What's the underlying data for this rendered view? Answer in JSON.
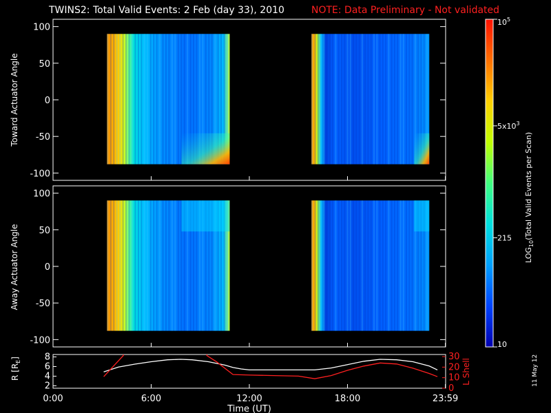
{
  "title": {
    "main": "TWINS2: Total Valid Events:  2 Feb (day  33), 2010",
    "note": "NOTE: Data Preliminary - Not validated",
    "note_color": "#ff2020"
  },
  "date_stamp": "11 May 12",
  "colors": {
    "background": "#000000",
    "axes": "#ffffff",
    "r_line": "#ffffff",
    "lshell_line": "#ff2020"
  },
  "chart_data": [
    {
      "type": "heatmap",
      "name": "toward",
      "ylabel": "Toward Actuator Angle",
      "ylim": [
        -110,
        110
      ],
      "yticks": [
        -100,
        -50,
        0,
        50,
        100
      ],
      "y_range": [
        -88,
        90
      ],
      "intervals": [
        [
          3.3,
          10.8
        ],
        [
          15.8,
          23.0
        ]
      ]
    },
    {
      "type": "heatmap",
      "name": "away",
      "ylabel": "Away Actuator Angle",
      "ylim": [
        -110,
        110
      ],
      "yticks": [
        -100,
        -50,
        0,
        50,
        100
      ],
      "y_range": [
        -88,
        90
      ],
      "intervals": [
        [
          3.3,
          10.8
        ],
        [
          15.8,
          23.0
        ]
      ]
    },
    {
      "type": "line",
      "name": "orbit",
      "ylabel_left": "R [R",
      "ylabel_left_sub": "E",
      "ylabel_left_end": "]",
      "ylabel_right": "L Shell",
      "xlabel": "Time (UT)",
      "xlim": [
        0,
        24
      ],
      "xticks": [
        0,
        6,
        12,
        18,
        23.983
      ],
      "xtick_labels": [
        "0:00",
        "6:00",
        "12:00",
        "18:00",
        "23:59"
      ],
      "left_ticks": [
        "2",
        "4",
        "6",
        "8"
      ],
      "left_tick_values": [
        2,
        4,
        6,
        8
      ],
      "left_ylim": [
        1.5,
        8.5
      ],
      "right_ticks": [
        "0",
        "10",
        "20",
        "30"
      ],
      "right_tick_values": [
        0,
        10,
        20,
        30
      ],
      "right_ylim": [
        0,
        32
      ],
      "series": [
        {
          "axis": "left",
          "x": [
            3.1,
            4.0,
            5.0,
            6.0,
            7.0,
            7.8,
            8.5,
            9.5,
            10.5,
            11.0,
            11.5,
            12.0,
            13.0,
            14.0,
            15.0,
            16.0,
            17.0,
            18.0,
            19.0,
            20.0,
            21.0,
            22.0,
            23.0,
            23.5
          ],
          "y": [
            4.9,
            5.9,
            6.5,
            7.0,
            7.4,
            7.5,
            7.4,
            7.0,
            6.3,
            5.8,
            5.5,
            5.3,
            5.3,
            5.3,
            5.3,
            5.3,
            5.7,
            6.4,
            7.1,
            7.5,
            7.4,
            7.0,
            6.1,
            5.3
          ]
        },
        {
          "axis": "right",
          "x": [
            3.1,
            4.3,
            4.3,
            9.4,
            9.4,
            10.0,
            11.0,
            12.0,
            13.5,
            15.0,
            16.0,
            17.0,
            18.0,
            19.0,
            20.0,
            21.0,
            22.0,
            23.0,
            23.5
          ],
          "y": [
            11,
            31,
            33,
            33,
            31,
            25,
            13,
            12.5,
            12,
            11.5,
            9,
            12,
            17,
            21,
            24,
            23,
            19,
            14,
            11
          ]
        }
      ]
    }
  ],
  "colorbar": {
    "scale": "log",
    "min": 10,
    "max": 100000,
    "tick_labels": [
      {
        "value": 10,
        "text": "10"
      },
      {
        "value": 215,
        "text": "215"
      },
      {
        "value": 5000,
        "text": "5x10",
        "sup": "3"
      },
      {
        "value": 100000,
        "text": "10",
        "sup": "5"
      }
    ],
    "label": "LOG",
    "label_sub": "10",
    "label_end": "(Total Valid  Events per Scan)",
    "stops": [
      "#0000b0",
      "#0044ff",
      "#00a0ff",
      "#00e0e0",
      "#40ff80",
      "#c0ff00",
      "#ffd000",
      "#ff7000",
      "#ff1000"
    ]
  }
}
